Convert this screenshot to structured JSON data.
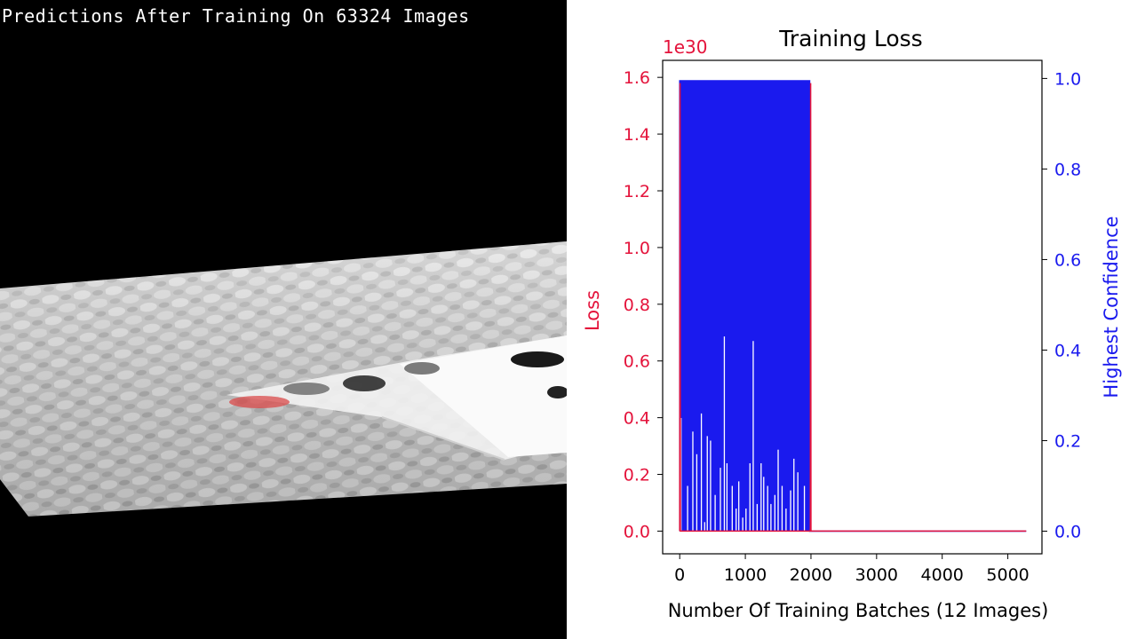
{
  "overlay": {
    "caption": "Predictions After Training On 63324 Images"
  },
  "colors": {
    "loss": "#e4133b",
    "confidence": "#1a1aee",
    "axis": "#000000",
    "background": "#ffffff"
  },
  "chart_data": {
    "type": "line",
    "title": "Training Loss",
    "xlabel": "Number Of Training Batches (12 Images)",
    "ylabel_left": "Loss",
    "ylabel_right": "Highest Confidence",
    "left_offset_label": "1e30",
    "xlim": [
      -260,
      5520
    ],
    "ylim_left": [
      -0.08,
      1.66
    ],
    "ylim_right": [
      -0.05,
      1.04
    ],
    "x_ticks": [
      0,
      1000,
      2000,
      3000,
      4000,
      5000
    ],
    "y_left_ticks": [
      "0.0",
      "0.2",
      "0.4",
      "0.6",
      "0.8",
      "1.0",
      "1.2",
      "1.4",
      "1.6"
    ],
    "y_right_ticks": [
      "0.0",
      "0.2",
      "0.4",
      "0.6",
      "0.8",
      "1.0"
    ],
    "grid": false,
    "series": [
      {
        "name": "Loss",
        "axis": "left",
        "description_points": {
          "x": [
            0,
            5,
            10,
            1990,
            1995,
            2000,
            5280
          ],
          "y": [
            0.0,
            1.58,
            0.0,
            0.0,
            1.58,
            0.0,
            0.0
          ]
        }
      },
      {
        "name": "Highest Confidence",
        "axis": "right",
        "plateau": 0.995,
        "start_x": 0,
        "end_x": 1980,
        "tail_x": 5280,
        "tail_y": 0.0,
        "dips": [
          {
            "x": 20,
            "y": 0.25
          },
          {
            "x": 120,
            "y": 0.1
          },
          {
            "x": 200,
            "y": 0.22
          },
          {
            "x": 260,
            "y": 0.17
          },
          {
            "x": 330,
            "y": 0.26
          },
          {
            "x": 380,
            "y": 0.02
          },
          {
            "x": 420,
            "y": 0.21
          },
          {
            "x": 470,
            "y": 0.2
          },
          {
            "x": 540,
            "y": 0.08
          },
          {
            "x": 620,
            "y": 0.14
          },
          {
            "x": 680,
            "y": 0.43
          },
          {
            "x": 720,
            "y": 0.15
          },
          {
            "x": 800,
            "y": 0.1
          },
          {
            "x": 860,
            "y": 0.05
          },
          {
            "x": 900,
            "y": 0.11
          },
          {
            "x": 960,
            "y": 0.03
          },
          {
            "x": 1010,
            "y": 0.05
          },
          {
            "x": 1070,
            "y": 0.15
          },
          {
            "x": 1120,
            "y": 0.42
          },
          {
            "x": 1180,
            "y": 0.06
          },
          {
            "x": 1240,
            "y": 0.15
          },
          {
            "x": 1280,
            "y": 0.12
          },
          {
            "x": 1340,
            "y": 0.1
          },
          {
            "x": 1390,
            "y": 0.06
          },
          {
            "x": 1450,
            "y": 0.08
          },
          {
            "x": 1500,
            "y": 0.18
          },
          {
            "x": 1560,
            "y": 0.1
          },
          {
            "x": 1620,
            "y": 0.05
          },
          {
            "x": 1690,
            "y": 0.09
          },
          {
            "x": 1740,
            "y": 0.16
          },
          {
            "x": 1800,
            "y": 0.13
          },
          {
            "x": 1900,
            "y": 0.1
          }
        ]
      }
    ]
  }
}
